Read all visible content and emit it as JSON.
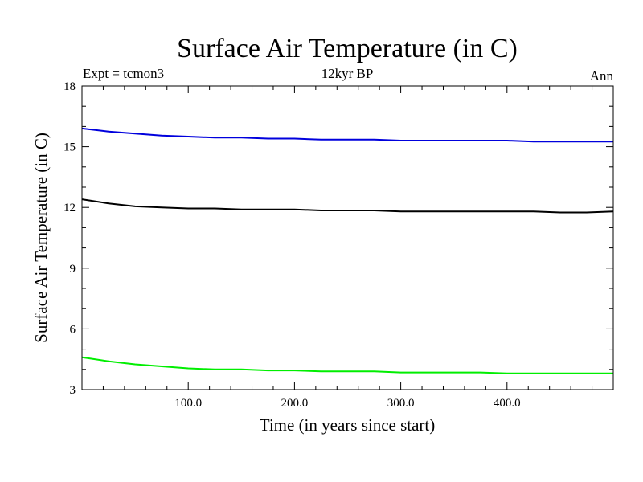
{
  "chart_data": {
    "type": "line",
    "title": "Surface Air Temperature (in C)",
    "subtitle_left": "Expt = tcmon3",
    "subtitle_center": "12kyr BP",
    "subtitle_right": "Ann",
    "xlabel": "Time (in years since start)",
    "ylabel": "Surface Air Temperature (in C)",
    "xlim": [
      0,
      500
    ],
    "ylim": [
      3,
      18
    ],
    "xticks": [
      100,
      200,
      300,
      400
    ],
    "xtick_labels": [
      "100.0",
      "200.0",
      "300.0",
      "400.0"
    ],
    "yticks": [
      3,
      6,
      9,
      12,
      15,
      18
    ],
    "ytick_labels": [
      "3",
      "6",
      "9",
      "12",
      "15",
      "18"
    ],
    "grid": false,
    "legend": "none",
    "series": [
      {
        "color": "#0000dd",
        "x": [
          0,
          25,
          50,
          75,
          100,
          125,
          150,
          175,
          200,
          225,
          250,
          275,
          300,
          325,
          350,
          375,
          400,
          425,
          450,
          475,
          500
        ],
        "values": [
          15.9,
          15.75,
          15.65,
          15.55,
          15.5,
          15.45,
          15.45,
          15.4,
          15.4,
          15.35,
          15.35,
          15.35,
          15.3,
          15.3,
          15.3,
          15.3,
          15.3,
          15.25,
          15.25,
          15.25,
          15.25
        ]
      },
      {
        "color": "#000000",
        "x": [
          0,
          25,
          50,
          75,
          100,
          125,
          150,
          175,
          200,
          225,
          250,
          275,
          300,
          325,
          350,
          375,
          400,
          425,
          450,
          475,
          500
        ],
        "values": [
          12.4,
          12.2,
          12.05,
          12.0,
          11.95,
          11.95,
          11.9,
          11.9,
          11.9,
          11.85,
          11.85,
          11.85,
          11.8,
          11.8,
          11.8,
          11.8,
          11.8,
          11.8,
          11.75,
          11.75,
          11.8
        ]
      },
      {
        "color": "#00ee00",
        "x": [
          0,
          25,
          50,
          75,
          100,
          125,
          150,
          175,
          200,
          225,
          250,
          275,
          300,
          325,
          350,
          375,
          400,
          425,
          450,
          475,
          500
        ],
        "values": [
          4.6,
          4.4,
          4.25,
          4.15,
          4.05,
          4.0,
          4.0,
          3.95,
          3.95,
          3.9,
          3.9,
          3.9,
          3.85,
          3.85,
          3.85,
          3.85,
          3.8,
          3.8,
          3.8,
          3.8,
          3.8
        ]
      }
    ]
  }
}
